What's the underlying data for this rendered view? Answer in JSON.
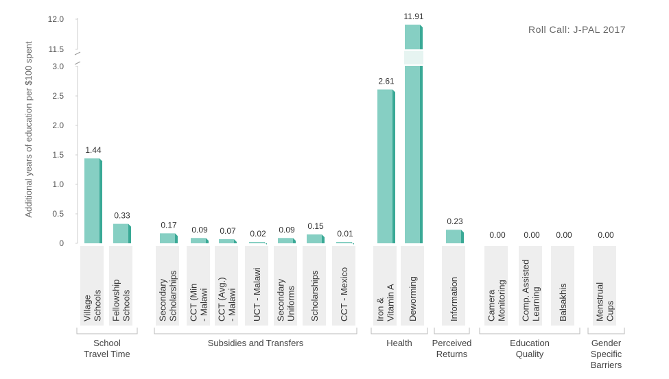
{
  "chart_data": {
    "type": "bar",
    "source_note": "Roll Call: J-PAL 2017",
    "ylabel": "Additional years of education per $100 spent",
    "y_axis": {
      "lower_range": [
        0,
        3.0
      ],
      "lower_ticks": [
        "0",
        "0.5",
        "1.0",
        "1.5",
        "2.0",
        "2.5",
        "3.0"
      ],
      "break": true,
      "upper_range": [
        11.5,
        12.0
      ],
      "upper_ticks": [
        "11.5",
        "12.0"
      ]
    },
    "grid": false,
    "bar_color": "#86cfc3",
    "bar_side_color": "#3aa996",
    "label_bg_color": "#eeeeee",
    "categories": [
      {
        "lines": [
          "Village",
          "Schools"
        ],
        "value": 1.44,
        "label": "1.44",
        "group": 0
      },
      {
        "lines": [
          "Fellowship",
          "Schools"
        ],
        "value": 0.33,
        "label": "0.33",
        "group": 0
      },
      {
        "lines": [
          "Secondary",
          "Scholarships"
        ],
        "value": 0.17,
        "label": "0.17",
        "group": 1
      },
      {
        "lines": [
          "CCT (Min",
          "- Malawi"
        ],
        "value": 0.09,
        "label": "0.09",
        "group": 1
      },
      {
        "lines": [
          "CCT (Avg.)",
          "- Malawi"
        ],
        "value": 0.07,
        "label": "0.07",
        "group": 1
      },
      {
        "lines": [
          "UCT - Malawi"
        ],
        "value": 0.02,
        "label": "0.02",
        "group": 1
      },
      {
        "lines": [
          "Secondary",
          "Uniforms"
        ],
        "value": 0.09,
        "label": "0.09",
        "group": 1
      },
      {
        "lines": [
          "Scholarships"
        ],
        "value": 0.15,
        "label": "0.15",
        "group": 1
      },
      {
        "lines": [
          "CCT - Mexico"
        ],
        "value": 0.01,
        "label": "0.01",
        "group": 1
      },
      {
        "lines": [
          "Iron &",
          "Vitamin A"
        ],
        "value": 2.61,
        "label": "2.61",
        "group": 2
      },
      {
        "lines": [
          "Deworming"
        ],
        "value": 11.91,
        "label": "11.91",
        "group": 2
      },
      {
        "lines": [
          "Information"
        ],
        "value": 0.23,
        "label": "0.23",
        "group": 3
      },
      {
        "lines": [
          "Camera",
          "Monitoring"
        ],
        "value": 0.0,
        "label": "0.00",
        "group": 4
      },
      {
        "lines": [
          "Comp. Assisted",
          "Learning"
        ],
        "value": 0.0,
        "label": "0.00",
        "group": 4
      },
      {
        "lines": [
          "Balsakhis"
        ],
        "value": 0.0,
        "label": "0.00",
        "group": 4
      },
      {
        "lines": [
          "Menstrual",
          "Cups"
        ],
        "value": 0.0,
        "label": "0.00",
        "group": 5
      }
    ],
    "groups": [
      {
        "lines": [
          "School",
          "Travel Time"
        ]
      },
      {
        "lines": [
          "Subsidies and Transfers"
        ]
      },
      {
        "lines": [
          "Health"
        ]
      },
      {
        "lines": [
          "Perceived",
          "Returns"
        ]
      },
      {
        "lines": [
          "Education",
          "Quality"
        ]
      },
      {
        "lines": [
          "Gender",
          "Specific",
          "Barriers"
        ]
      }
    ]
  }
}
